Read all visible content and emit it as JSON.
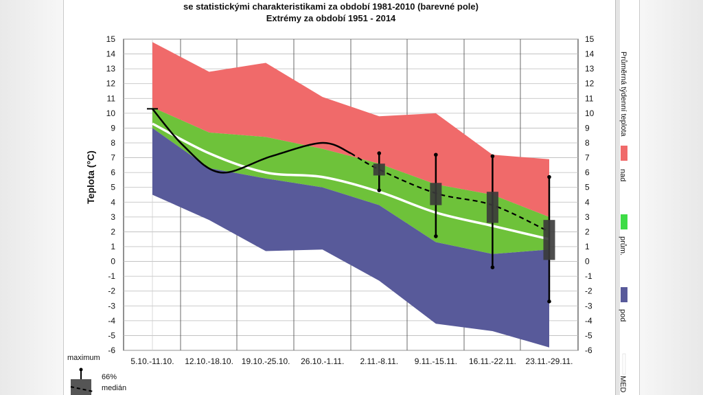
{
  "titles": {
    "line1": "se statistickými charakteristikami za období 1981-2010 (barevné pole)",
    "line2": "Extrémy za období 1951 - 2014"
  },
  "legend": {
    "right_title": "Průměrná týdenní teplota",
    "nad": "nad",
    "prum": "prům.",
    "pod": "pod",
    "median_line": "MED",
    "box_maximum": "maximum",
    "box_66": "66%",
    "box_median": "medián",
    "colors": {
      "nad": "#f06a6a",
      "prum": "#3ddc46",
      "pod": "#585a9a",
      "median": "#ffffff"
    }
  },
  "chart_data": {
    "type": "area",
    "ylabel": "Teplota (°C)",
    "ylim": [
      -6,
      15
    ],
    "yticks": [
      15,
      14,
      13,
      12,
      11,
      10,
      9,
      8,
      7,
      6,
      5,
      4,
      3,
      2,
      1,
      0,
      -1,
      -2,
      -3,
      -4,
      -5,
      -6
    ],
    "categories": [
      "5.10.-11.10.",
      "12.10.-18.10.",
      "19.10.-25.10.",
      "26.10.-1.11.",
      "2.11.-8.11.",
      "9.11.-15.11.",
      "16.11.-22.11.",
      "23.11.-29.11."
    ],
    "grid": true,
    "colors": {
      "max_band": "#f06a6a",
      "avg_band": "#6ec23a",
      "min_band": "#585a9a",
      "median": "#ffffff",
      "observed": "#000000",
      "box": "#3a3a3a"
    },
    "bands": {
      "maximum": [
        14.8,
        12.8,
        13.4,
        11.1,
        9.8,
        10.0,
        7.2,
        6.9
      ],
      "upper": [
        10.4,
        8.7,
        8.4,
        7.6,
        6.6,
        5.2,
        4.5,
        3.0
      ],
      "median": [
        9.3,
        7.3,
        6.0,
        5.7,
        4.7,
        3.3,
        2.4,
        1.5
      ],
      "lower": [
        9.0,
        6.3,
        5.6,
        5.0,
        3.8,
        1.3,
        0.5,
        0.8
      ],
      "minimum": [
        4.5,
        2.8,
        0.7,
        0.8,
        -1.3,
        -4.2,
        -4.7,
        -5.8
      ]
    },
    "observed_weeks": [
      {
        "x": 0,
        "y": 10.3
      },
      {
        "x": 0.55,
        "y": 7.8
      },
      {
        "x": 1.2,
        "y": 6.0
      },
      {
        "x": 2.1,
        "y": 7.1
      },
      {
        "x": 3.0,
        "y": 8.0
      },
      {
        "x": 3.5,
        "y": 7.3
      },
      {
        "x": 4.0,
        "y": 6.2
      },
      {
        "x": 5.0,
        "y": 4.6
      },
      {
        "x": 6.0,
        "y": 3.8
      },
      {
        "x": 7.0,
        "y": 2.0
      }
    ],
    "boxes": [
      {
        "x": 4,
        "max": 7.3,
        "q_high": 6.6,
        "q_low": 5.8,
        "min": 4.8
      },
      {
        "x": 5,
        "max": 7.2,
        "q_high": 5.3,
        "q_low": 3.8,
        "min": 1.7
      },
      {
        "x": 6,
        "max": 7.1,
        "q_high": 4.7,
        "q_low": 2.6,
        "min": -0.4
      },
      {
        "x": 7,
        "max": 5.7,
        "q_high": 2.8,
        "q_low": 0.1,
        "min": -2.7
      }
    ]
  }
}
